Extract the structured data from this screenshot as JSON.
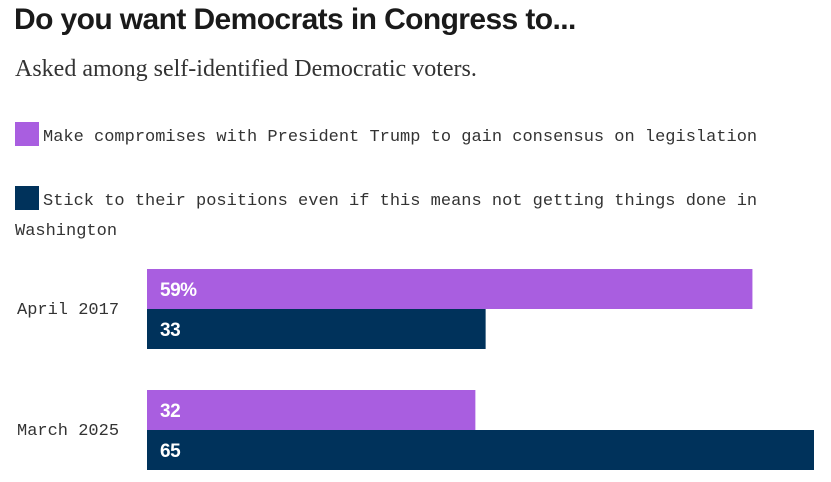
{
  "title": "Do you want Democrats in Congress to...",
  "subtitle": "Asked among self-identified Democratic voters.",
  "chart_data": {
    "type": "bar",
    "orientation": "horizontal",
    "title": "Do you want Democrats in Congress to...",
    "subtitle": "Asked among self-identified Democratic voters.",
    "categories": [
      "April 2017",
      "March 2025"
    ],
    "series": [
      {
        "name": "Make compromises with President Trump to gain consensus on legislation",
        "color": "#a95ee0",
        "values": [
          59,
          32
        ],
        "labels": [
          "59%",
          "32"
        ]
      },
      {
        "name": "Stick to their positions even if this means not getting things done in Washington",
        "color": "#00325b",
        "values": [
          33,
          65
        ],
        "labels": [
          "33",
          "65"
        ]
      }
    ],
    "xlim": [
      0,
      65
    ],
    "grid": false,
    "legend_position": "top"
  }
}
